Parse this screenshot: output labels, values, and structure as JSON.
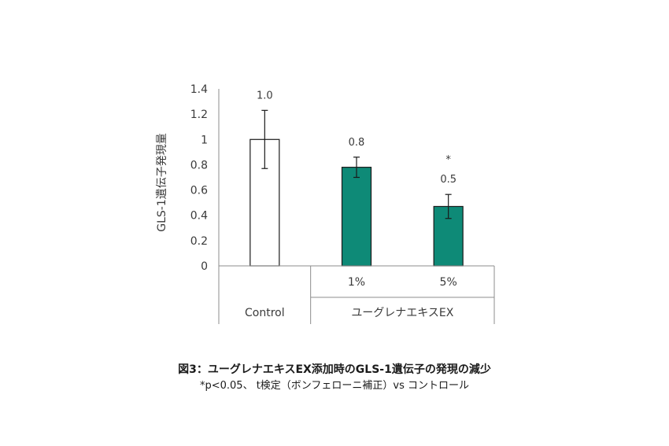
{
  "chart_data": {
    "type": "bar",
    "ylabel": "GLS-1遺伝子発現量",
    "ylim": [
      0,
      1.4
    ],
    "yticks": [
      0,
      0.2,
      0.4,
      0.6,
      0.8,
      1,
      1.2,
      1.4
    ],
    "ytick_labels": [
      "0",
      "0.2",
      "0.4",
      "0.6",
      "0.8",
      "1",
      "1.2",
      "1.4"
    ],
    "grid": false,
    "categories": [
      "Control",
      "1%",
      "5%"
    ],
    "category_groups": [
      {
        "label": "Control",
        "categories": [
          "Control"
        ]
      },
      {
        "label": "ユーグレナエキスEX",
        "categories": [
          "1%",
          "5%"
        ]
      }
    ],
    "values": [
      1.0,
      0.78,
      0.47
    ],
    "error_bars": [
      0.23,
      0.08,
      0.095
    ],
    "data_labels": [
      "1.0",
      "0.8",
      "0.5"
    ],
    "significance": [
      "",
      "",
      "*"
    ],
    "bar_colors": [
      "#ffffff",
      "#0e8a77",
      "#0e8a77"
    ]
  },
  "caption": {
    "title": "図3：ユーグレナエキスEX添加時のGLS-1遺伝子の発現の減少",
    "note": "*p<0.05、 t検定（ボンフェローニ補正）vs コントロール"
  }
}
